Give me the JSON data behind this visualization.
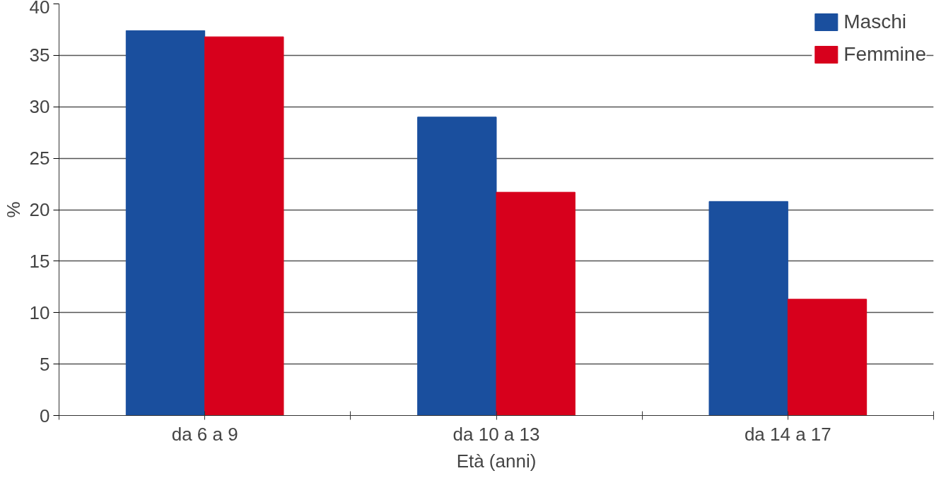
{
  "chart_data": {
    "type": "bar",
    "categories": [
      "da 6 a 9",
      "da 10 a 13",
      "da 14 a 17"
    ],
    "series": [
      {
        "name": "Maschi",
        "color": "#1a4f9e",
        "values": [
          37.4,
          29.0,
          20.8
        ]
      },
      {
        "name": "Femmine",
        "color": "#d7001c",
        "values": [
          36.8,
          21.7,
          11.3
        ]
      }
    ],
    "xlabel": "Età (anni)",
    "ylabel": "%",
    "ylim": [
      0,
      40
    ],
    "yticks": [
      0,
      5,
      10,
      15,
      20,
      25,
      30,
      35,
      40
    ],
    "grid": "y",
    "legend": "top right"
  }
}
